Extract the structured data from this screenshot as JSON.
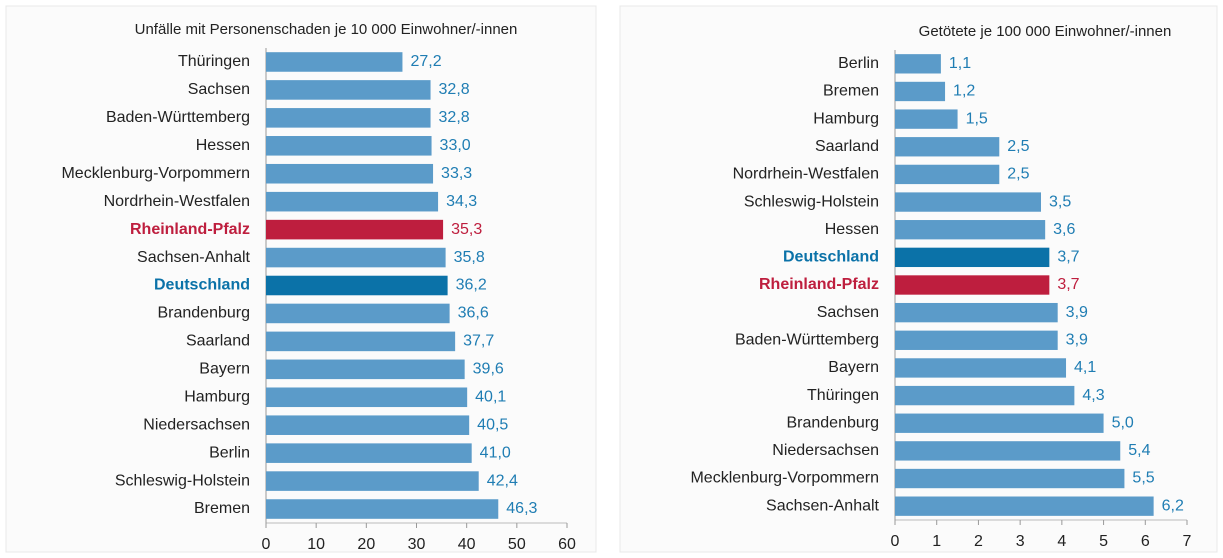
{
  "chart_data": [
    {
      "type": "bar",
      "orientation": "horizontal",
      "title": "Unfälle mit Personenschaden je 10 000 Einwohner/-innen",
      "categories": [
        "Thüringen",
        "Sachsen",
        "Baden-Württemberg",
        "Hessen",
        "Mecklenburg-Vorpommern",
        "Nordrhein-Westfalen",
        "Rheinland-Pfalz",
        "Sachsen-Anhalt",
        "Deutschland",
        "Brandenburg",
        "Saarland",
        "Bayern",
        "Hamburg",
        "Niedersachsen",
        "Berlin",
        "Schleswig-Holstein",
        "Bremen"
      ],
      "values": [
        27.2,
        32.8,
        32.8,
        33.0,
        33.3,
        34.3,
        35.3,
        35.8,
        36.2,
        36.6,
        37.7,
        39.6,
        40.1,
        40.5,
        41.0,
        42.4,
        46.3
      ],
      "value_labels": [
        "27,2",
        "32,8",
        "32,8",
        "33,0",
        "33,3",
        "34,3",
        "35,3",
        "35,8",
        "36,2",
        "36,6",
        "37,7",
        "39,6",
        "40,1",
        "40,5",
        "41,0",
        "42,4",
        "46,3"
      ],
      "color": "#5b9bc9",
      "colors": [
        "#5b9bc9",
        "#5b9bc9",
        "#5b9bc9",
        "#5b9bc9",
        "#5b9bc9",
        "#5b9bc9",
        "#be1e3e",
        "#5b9bc9",
        "#0b72a8",
        "#5b9bc9",
        "#5b9bc9",
        "#5b9bc9",
        "#5b9bc9",
        "#5b9bc9",
        "#5b9bc9",
        "#5b9bc9",
        "#5b9bc9"
      ],
      "xlim": [
        0,
        60
      ],
      "xticks": [
        0,
        10,
        20,
        30,
        40,
        50,
        60
      ]
    },
    {
      "type": "bar",
      "orientation": "horizontal",
      "title": "Getötete je 100 000 Einwohner/-innen",
      "categories": [
        "Berlin",
        "Bremen",
        "Hamburg",
        "Saarland",
        "Nordrhein-Westfalen",
        "Schleswig-Holstein",
        "Hessen",
        "Deutschland",
        "Rheinland-Pfalz",
        "Sachsen",
        "Baden-Württemberg",
        "Bayern",
        "Thüringen",
        "Brandenburg",
        "Niedersachsen",
        "Mecklenburg-Vorpommern",
        "Sachsen-Anhalt"
      ],
      "values": [
        1.1,
        1.2,
        1.5,
        2.5,
        2.5,
        3.5,
        3.6,
        3.7,
        3.7,
        3.9,
        3.9,
        4.1,
        4.3,
        5.0,
        5.4,
        5.5,
        6.2
      ],
      "value_labels": [
        "1,1",
        "1,2",
        "1,5",
        "2,5",
        "2,5",
        "3,5",
        "3,6",
        "3,7",
        "3,7",
        "3,9",
        "3,9",
        "4,1",
        "4,3",
        "5,0",
        "5,4",
        "5,5",
        "6,2"
      ],
      "color": "#5b9bc9",
      "colors": [
        "#5b9bc9",
        "#5b9bc9",
        "#5b9bc9",
        "#5b9bc9",
        "#5b9bc9",
        "#5b9bc9",
        "#5b9bc9",
        "#0b72a8",
        "#be1e3e",
        "#5b9bc9",
        "#5b9bc9",
        "#5b9bc9",
        "#5b9bc9",
        "#5b9bc9",
        "#5b9bc9",
        "#5b9bc9",
        "#5b9bc9"
      ],
      "xlim": [
        0,
        7
      ],
      "xticks": [
        0,
        1,
        2,
        3,
        4,
        5,
        6,
        7
      ]
    }
  ]
}
